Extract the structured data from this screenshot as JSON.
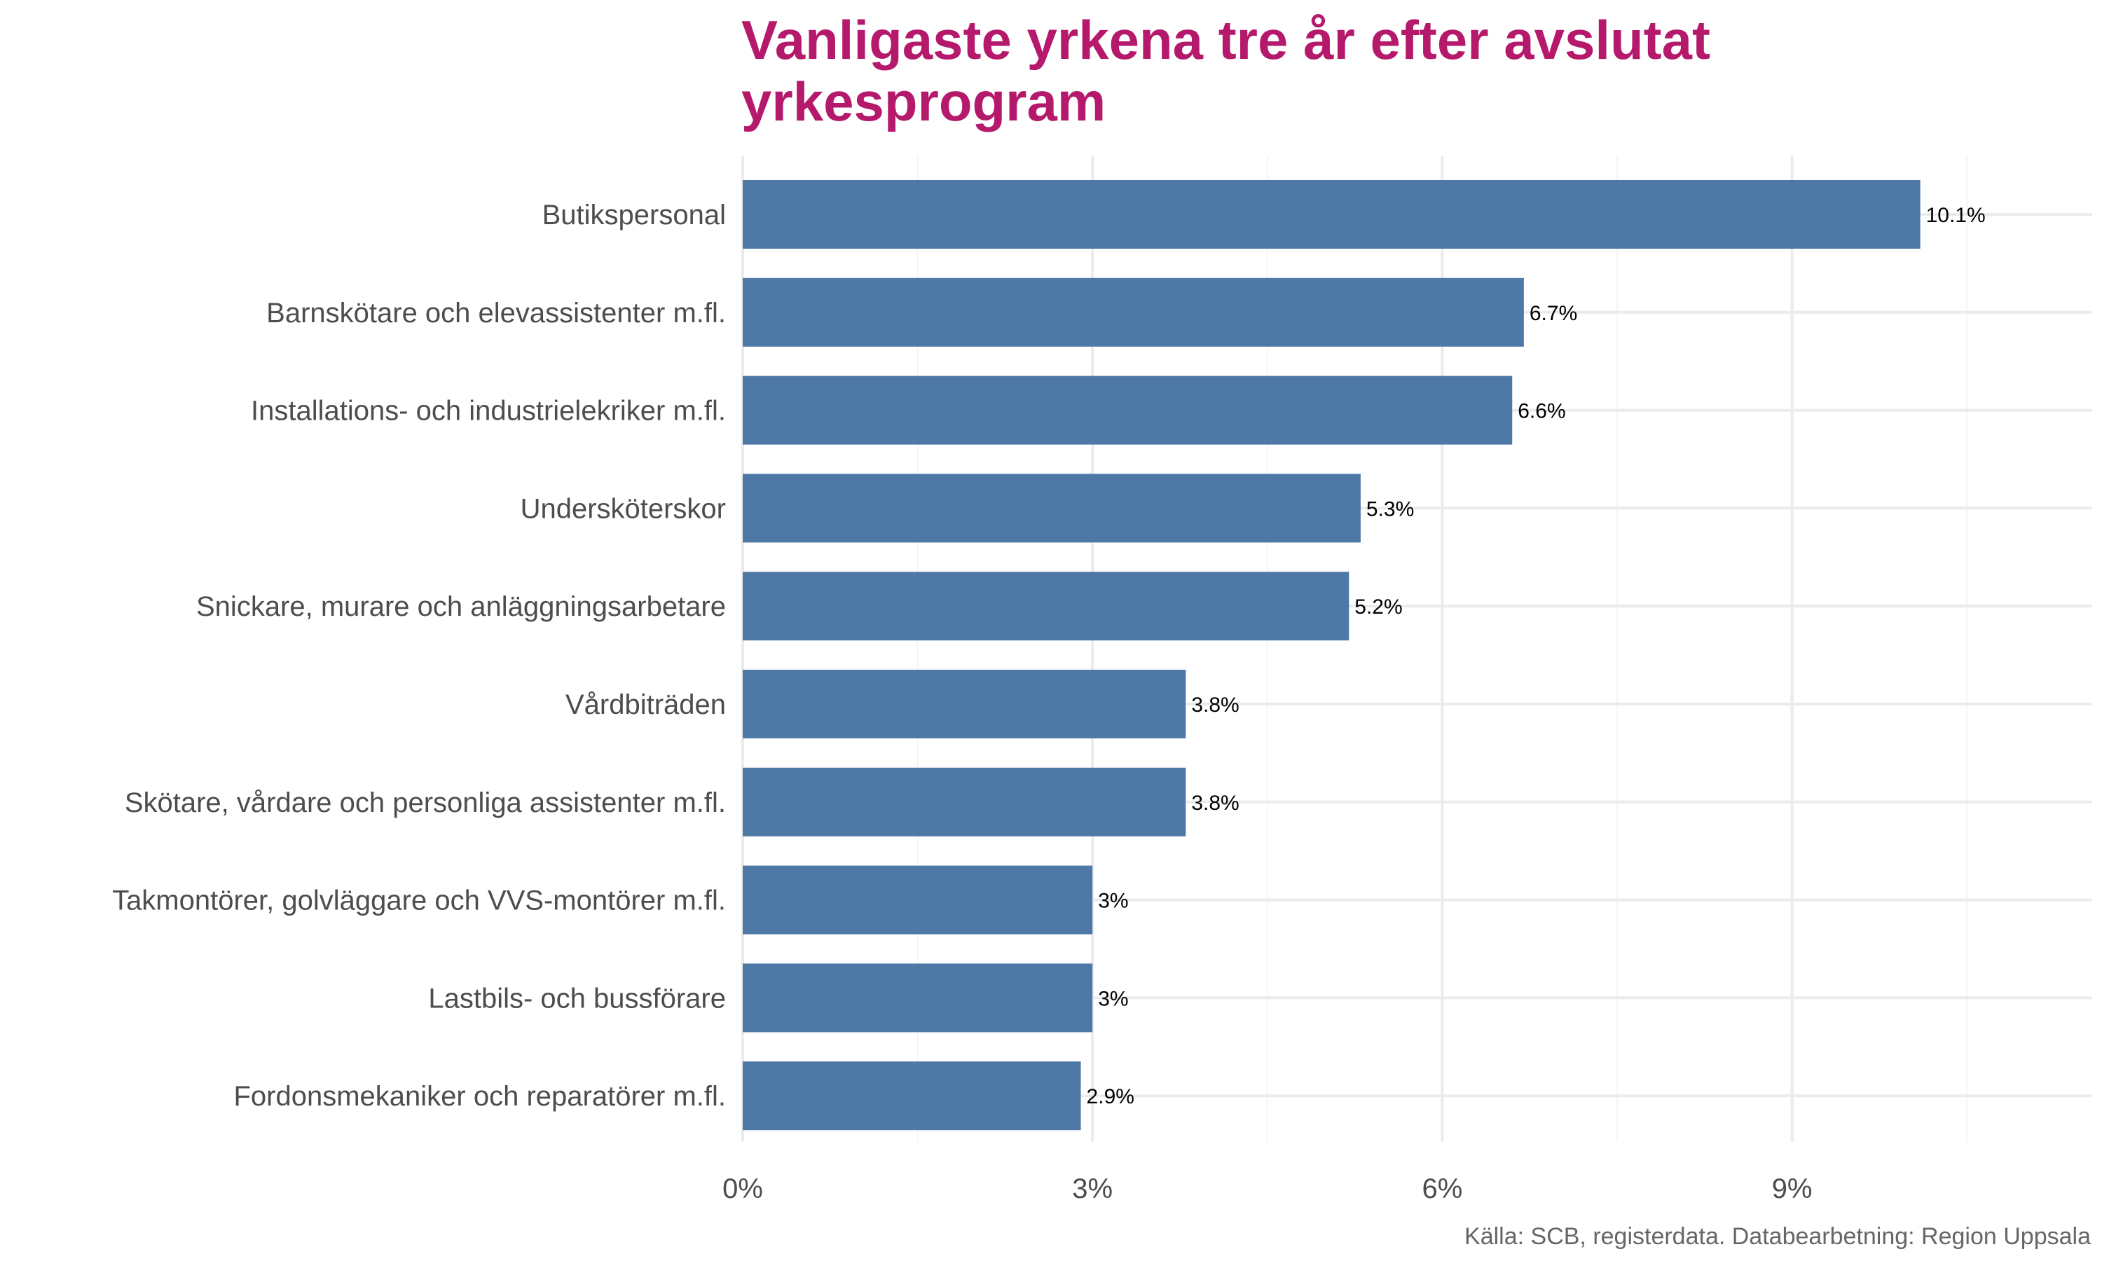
{
  "colors": {
    "title": "#b5196b",
    "bar": "#4e78a6",
    "grid": "#ebebeb",
    "axis_text": "#4d4d4d",
    "caption": "#666666",
    "data_label": "#000000"
  },
  "caption": "Källa: SCB, registerdata. Databearbetning: Region Uppsala",
  "chart_data": {
    "type": "bar",
    "orientation": "horizontal",
    "title_lines": [
      "Vanligaste yrkena tre år efter avslutat",
      "yrkesprogram"
    ],
    "xlabel": "",
    "ylabel": "",
    "categories": [
      "Butikspersonal",
      "Barnskötare och elevassistenter m.fl.",
      "Installations- och industrielekriker m.fl.",
      "Undersköterskor",
      "Snickare, murare och anläggningsarbetare",
      "Vårdbiträden",
      "Skötare, vårdare och personliga assistenter m.fl.",
      "Takmontörer, golvläggare och VVS-montörer m.fl.",
      "Lastbils- och bussförare",
      "Fordonsmekaniker och reparatörer m.fl."
    ],
    "values": [
      10.1,
      6.7,
      6.6,
      5.3,
      5.2,
      3.8,
      3.8,
      3.0,
      3.0,
      2.9
    ],
    "value_labels": [
      "10.1%",
      "6.7%",
      "6.6%",
      "5.3%",
      "5.2%",
      "3.8%",
      "3.8%",
      "3%",
      "3%",
      "2.9%"
    ],
    "x_ticks": [
      0,
      3,
      6,
      9
    ],
    "x_tick_labels": [
      "0%",
      "3%",
      "6%",
      "9%"
    ],
    "xlim": [
      0,
      11.6
    ],
    "grid": true,
    "legend": "none"
  }
}
